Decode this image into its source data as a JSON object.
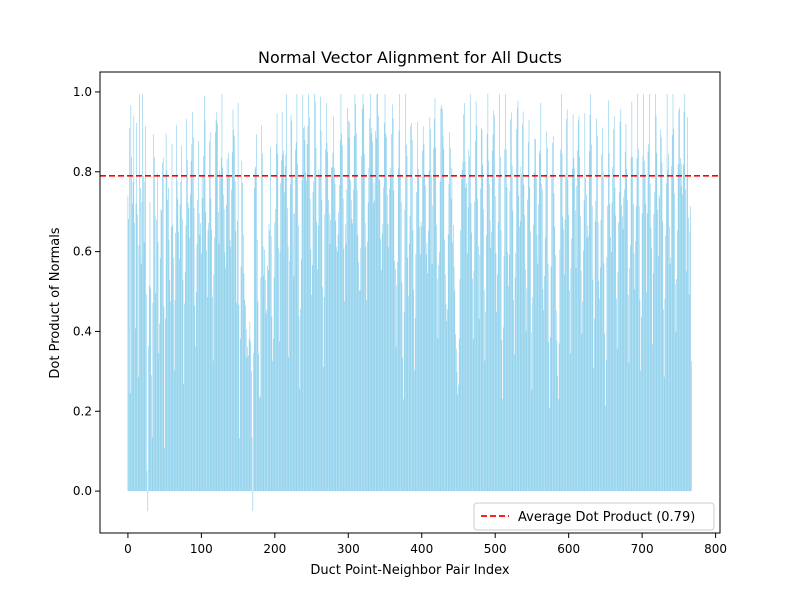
{
  "chart_data": {
    "type": "bar",
    "title": "Normal Vector Alignment for All Ducts",
    "xlabel": "Duct Point-Neighbor Pair Index",
    "ylabel": "Dot Product of Normals",
    "xlim": [
      -38,
      806
    ],
    "ylim": [
      -0.105,
      1.05
    ],
    "x_ticks": [
      0,
      100,
      200,
      300,
      400,
      500,
      600,
      700,
      800
    ],
    "x_tick_labels": [
      "0",
      "100",
      "200",
      "300",
      "400",
      "500",
      "600",
      "700",
      "800"
    ],
    "y_ticks": [
      0.0,
      0.2,
      0.4,
      0.6,
      0.8,
      1.0
    ],
    "y_tick_labels": [
      "0.0",
      "0.2",
      "0.4",
      "0.6",
      "0.8",
      "1.0"
    ],
    "grid": false,
    "legend_position": "lower-right",
    "bar_color": "#87ceeb",
    "average_line": {
      "value": 0.79,
      "color": "#ff0000",
      "style": "dashed",
      "label": "Average Dot Product (0.79)"
    },
    "series": {
      "n_bars": 768,
      "anchors": [
        [
          0,
          0.83
        ],
        [
          1,
          0.62
        ],
        [
          2,
          0.99
        ],
        [
          3,
          0.24
        ],
        [
          4,
          0.99
        ],
        [
          6,
          0.7
        ],
        [
          8,
          0.97
        ],
        [
          10,
          0.36
        ],
        [
          12,
          0.98
        ],
        [
          14,
          0.26
        ],
        [
          16,
          0.99
        ],
        [
          18,
          0.55
        ],
        [
          20,
          0.96
        ],
        [
          22,
          0.6
        ],
        [
          24,
          0.98
        ],
        [
          26,
          0.05
        ],
        [
          27,
          -0.05
        ],
        [
          28,
          0.4
        ],
        [
          30,
          0.65
        ],
        [
          33,
          0.14
        ],
        [
          35,
          0.88
        ],
        [
          38,
          0.5
        ],
        [
          40,
          0.78
        ],
        [
          42,
          0.35
        ],
        [
          45,
          0.66
        ],
        [
          48,
          0.9
        ],
        [
          50,
          0.12
        ],
        [
          52,
          0.84
        ],
        [
          55,
          0.7
        ],
        [
          58,
          0.5
        ],
        [
          60,
          0.93
        ],
        [
          63,
          0.35
        ],
        [
          66,
          0.9
        ],
        [
          70,
          0.6
        ],
        [
          73,
          0.95
        ],
        [
          76,
          0.3
        ],
        [
          80,
          0.89
        ],
        [
          84,
          0.7
        ],
        [
          88,
          0.96
        ],
        [
          92,
          0.36
        ],
        [
          96,
          0.8
        ],
        [
          100,
          0.63
        ],
        [
          104,
          0.99
        ],
        [
          108,
          0.46
        ],
        [
          112,
          0.98
        ],
        [
          116,
          0.33
        ],
        [
          120,
          0.97
        ],
        [
          124,
          0.7
        ],
        [
          128,
          0.95
        ],
        [
          132,
          0.56
        ],
        [
          136,
          0.85
        ],
        [
          140,
          0.62
        ],
        [
          144,
          0.98
        ],
        [
          148,
          0.46
        ],
        [
          150,
          0.9
        ],
        [
          152,
          0.16
        ],
        [
          155,
          0.76
        ],
        [
          158,
          0.58
        ],
        [
          160,
          0.42
        ],
        [
          163,
          0.36
        ],
        [
          166,
          0.4
        ],
        [
          168,
          0.3
        ],
        [
          170,
          -0.05
        ],
        [
          172,
          0.7
        ],
        [
          175,
          0.87
        ],
        [
          178,
          0.3
        ],
        [
          180,
          0.2
        ],
        [
          182,
          0.88
        ],
        [
          185,
          0.6
        ],
        [
          188,
          0.45
        ],
        [
          191,
          0.6
        ],
        [
          194,
          0.78
        ],
        [
          197,
          0.3
        ],
        [
          200,
          0.66
        ],
        [
          203,
          0.97
        ],
        [
          206,
          0.4
        ],
        [
          210,
          0.99
        ],
        [
          213,
          0.7
        ],
        [
          216,
          0.99
        ],
        [
          219,
          0.35
        ],
        [
          222,
          0.98
        ],
        [
          226,
          0.6
        ],
        [
          230,
          0.99
        ],
        [
          234,
          0.27
        ],
        [
          238,
          0.97
        ],
        [
          242,
          0.8
        ],
        [
          246,
          0.99
        ],
        [
          250,
          0.46
        ],
        [
          254,
          0.99
        ],
        [
          258,
          0.6
        ],
        [
          262,
          0.97
        ],
        [
          266,
          0.36
        ],
        [
          270,
          0.99
        ],
        [
          275,
          0.62
        ],
        [
          280,
          0.96
        ],
        [
          285,
          0.55
        ],
        [
          290,
          0.99
        ],
        [
          295,
          0.5
        ],
        [
          300,
          0.99
        ],
        [
          305,
          0.65
        ],
        [
          310,
          0.98
        ],
        [
          315,
          0.45
        ],
        [
          320,
          0.99
        ],
        [
          325,
          0.5
        ],
        [
          330,
          0.97
        ],
        [
          335,
          0.7
        ],
        [
          340,
          0.99
        ],
        [
          345,
          0.55
        ],
        [
          350,
          0.98
        ],
        [
          355,
          0.62
        ],
        [
          360,
          0.99
        ],
        [
          365,
          0.4
        ],
        [
          370,
          0.97
        ],
        [
          375,
          0.2
        ],
        [
          378,
          0.98
        ],
        [
          382,
          0.55
        ],
        [
          386,
          0.96
        ],
        [
          390,
          0.3
        ],
        [
          394,
          0.97
        ],
        [
          398,
          0.55
        ],
        [
          402,
          0.9
        ],
        [
          405,
          0.75
        ],
        [
          408,
          0.5
        ],
        [
          411,
          0.99
        ],
        [
          414,
          0.6
        ],
        [
          418,
          0.98
        ],
        [
          422,
          0.4
        ],
        [
          426,
          0.94
        ],
        [
          430,
          0.8
        ],
        [
          434,
          0.4
        ],
        [
          438,
          0.86
        ],
        [
          442,
          0.7
        ],
        [
          446,
          0.36
        ],
        [
          450,
          0.25
        ],
        [
          454,
          0.75
        ],
        [
          458,
          0.99
        ],
        [
          462,
          0.6
        ],
        [
          466,
          0.96
        ],
        [
          470,
          0.36
        ],
        [
          474,
          0.98
        ],
        [
          478,
          0.46
        ],
        [
          482,
          0.99
        ],
        [
          486,
          0.3
        ],
        [
          490,
          0.99
        ],
        [
          494,
          0.55
        ],
        [
          498,
          0.99
        ],
        [
          502,
          0.45
        ],
        [
          506,
          0.97
        ],
        [
          510,
          0.2
        ],
        [
          514,
          0.98
        ],
        [
          518,
          0.55
        ],
        [
          522,
          0.97
        ],
        [
          526,
          0.35
        ],
        [
          530,
          0.99
        ],
        [
          534,
          0.65
        ],
        [
          538,
          0.98
        ],
        [
          542,
          0.45
        ],
        [
          546,
          0.96
        ],
        [
          550,
          0.25
        ],
        [
          554,
          0.97
        ],
        [
          558,
          0.55
        ],
        [
          562,
          0.99
        ],
        [
          566,
          0.4
        ],
        [
          570,
          0.98
        ],
        [
          574,
          0.2
        ],
        [
          578,
          0.94
        ],
        [
          582,
          0.6
        ],
        [
          586,
          0.2
        ],
        [
          590,
          0.96
        ],
        [
          594,
          0.5
        ],
        [
          598,
          0.98
        ],
        [
          602,
          0.35
        ],
        [
          606,
          0.97
        ],
        [
          610,
          0.6
        ],
        [
          614,
          0.99
        ],
        [
          618,
          0.4
        ],
        [
          622,
          0.95
        ],
        [
          626,
          0.6
        ],
        [
          630,
          0.98
        ],
        [
          634,
          0.3
        ],
        [
          638,
          0.97
        ],
        [
          642,
          0.45
        ],
        [
          646,
          0.94
        ],
        [
          650,
          0.2
        ],
        [
          654,
          0.9
        ],
        [
          658,
          0.55
        ],
        [
          662,
          0.98
        ],
        [
          666,
          0.35
        ],
        [
          670,
          0.97
        ],
        [
          674,
          0.6
        ],
        [
          678,
          0.96
        ],
        [
          682,
          0.35
        ],
        [
          686,
          0.99
        ],
        [
          690,
          0.5
        ],
        [
          694,
          0.98
        ],
        [
          698,
          0.3
        ],
        [
          702,
          0.97
        ],
        [
          706,
          0.55
        ],
        [
          710,
          0.99
        ],
        [
          714,
          0.4
        ],
        [
          718,
          0.98
        ],
        [
          722,
          0.6
        ],
        [
          726,
          0.97
        ],
        [
          730,
          0.3
        ],
        [
          734,
          0.99
        ],
        [
          738,
          0.55
        ],
        [
          742,
          0.98
        ],
        [
          746,
          0.4
        ],
        [
          750,
          0.97
        ],
        [
          754,
          0.75
        ],
        [
          758,
          1.0
        ],
        [
          760,
          0.6
        ],
        [
          762,
          0.85
        ],
        [
          764,
          0.55
        ],
        [
          766,
          0.8
        ],
        [
          767,
          0.33
        ]
      ]
    }
  }
}
